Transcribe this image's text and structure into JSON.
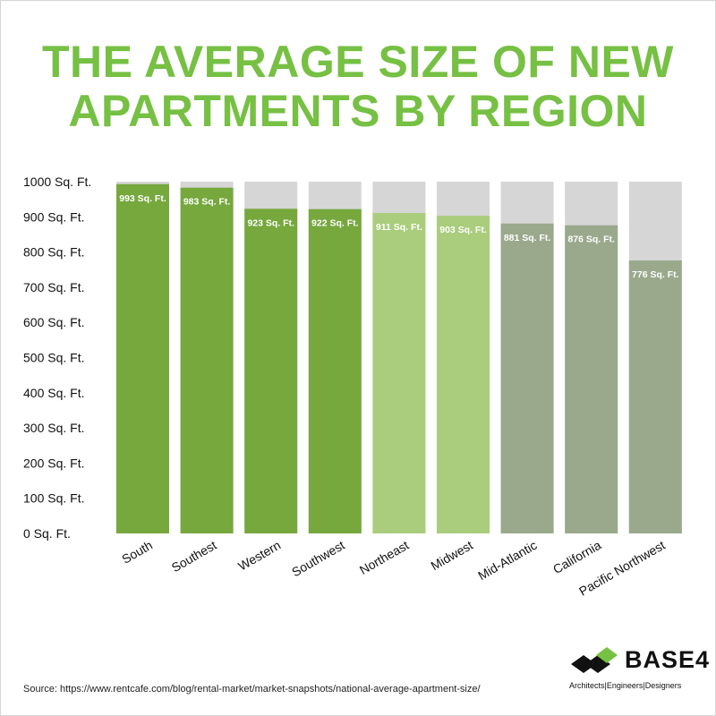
{
  "chart_data": {
    "type": "bar",
    "title": "THE AVERAGE SIZE OF NEW APARTMENTS BY REGION",
    "title_lines": [
      "THE AVERAGE SIZE OF NEW",
      "APARTMENTS BY REGION"
    ],
    "categories": [
      "South",
      "Southest",
      "Western",
      "Southwest",
      "Northeast",
      "Midwest",
      "Mid-Atlantic",
      "California",
      "Pacific Northwest"
    ],
    "values": [
      993,
      983,
      923,
      922,
      911,
      903,
      881,
      876,
      776
    ],
    "value_labels": [
      "993 Sq. Ft.",
      "983 Sq. Ft.",
      "923 Sq. Ft.",
      "922 Sq. Ft.",
      "911 Sq. Ft.",
      "903 Sq. Ft.",
      "881 Sq. Ft.",
      "876 Sq. Ft.",
      "776 Sq. Ft."
    ],
    "bar_colors": [
      "#76a83d",
      "#76a83d",
      "#76a83d",
      "#76a83d",
      "#a9cd7c",
      "#a9cd7c",
      "#9aa88c",
      "#9aa88c",
      "#9aa88c"
    ],
    "background_bar_color": "#d6d6d6",
    "ylim": [
      0,
      1000
    ],
    "yticks": [
      0,
      100,
      200,
      300,
      400,
      500,
      600,
      700,
      800,
      900,
      1000
    ],
    "ytick_labels": [
      "0 Sq. Ft.",
      "100 Sq. Ft.",
      "200 Sq. Ft.",
      "300 Sq. Ft.",
      "400 Sq. Ft.",
      "500 Sq. Ft.",
      "600 Sq. Ft.",
      "700 Sq. Ft.",
      "800 Sq. Ft.",
      "900 Sq. Ft.",
      "1000 Sq. Ft."
    ],
    "xlabel": "",
    "ylabel": "",
    "grid": false,
    "title_color": "#76c043"
  },
  "source": {
    "label": "Source:",
    "url": "https://www.rentcafe.com/blog/rental-market/market-snapshots/national-average-apartment-size/"
  },
  "logo": {
    "word": "BASE4",
    "tagline": "Architects|Engineers|Designers"
  }
}
